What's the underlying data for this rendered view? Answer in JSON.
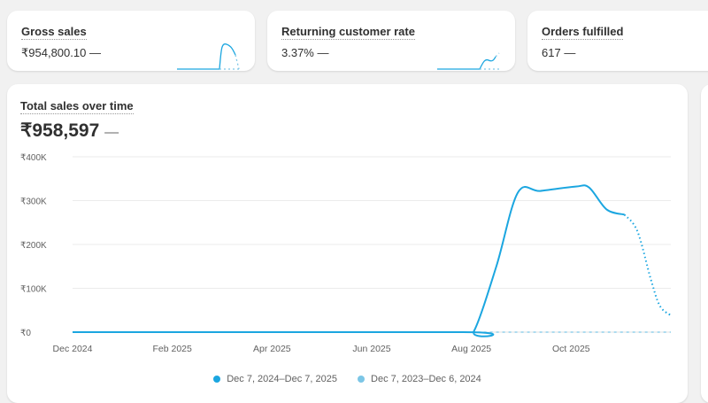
{
  "kpis": [
    {
      "title": "Gross sales",
      "value": "₹954,800.10",
      "change": "—"
    },
    {
      "title": "Returning customer rate",
      "value": "3.37%",
      "change": "—"
    },
    {
      "title": "Orders fulfilled",
      "value": "617",
      "change": "—"
    }
  ],
  "main": {
    "title": "Total sales over time",
    "value": "₹958,597",
    "change": "—"
  },
  "colors": {
    "current": "#1ba6e0",
    "previous": "#7cc6e6"
  },
  "chart_data": {
    "type": "line",
    "title": "Total sales over time",
    "yticks": [
      "₹0",
      "₹100K",
      "₹200K",
      "₹300K",
      "₹400K"
    ],
    "ylim": [
      0,
      400000
    ],
    "xlim": [
      0,
      12
    ],
    "xticks": [
      {
        "m": 0,
        "label": "Dec 2024"
      },
      {
        "m": 2,
        "label": "Feb 2025"
      },
      {
        "m": 4,
        "label": "Apr 2025"
      },
      {
        "m": 6,
        "label": "Jun 2025"
      },
      {
        "m": 8,
        "label": "Aug 2025"
      },
      {
        "m": 10,
        "label": "Oct 2025"
      }
    ],
    "series": [
      {
        "name": "Dec 7, 2024–Dec 7, 2025",
        "x": [
          0,
          7.8,
          8.05,
          8.5,
          8.93,
          9.38,
          10.09,
          10.36,
          10.71,
          11.07
        ],
        "values": [
          0,
          0,
          2000,
          150000,
          318000,
          322000,
          332000,
          330000,
          280000,
          268000
        ],
        "projected_x": [
          11.07,
          11.33,
          11.6,
          11.78,
          12
        ],
        "projected": [
          268000,
          230000,
          120000,
          60000,
          38000
        ]
      },
      {
        "name": "Dec 7, 2023–Dec 6, 2024",
        "x": [
          8,
          12
        ],
        "values": [
          0,
          0
        ]
      }
    ]
  }
}
